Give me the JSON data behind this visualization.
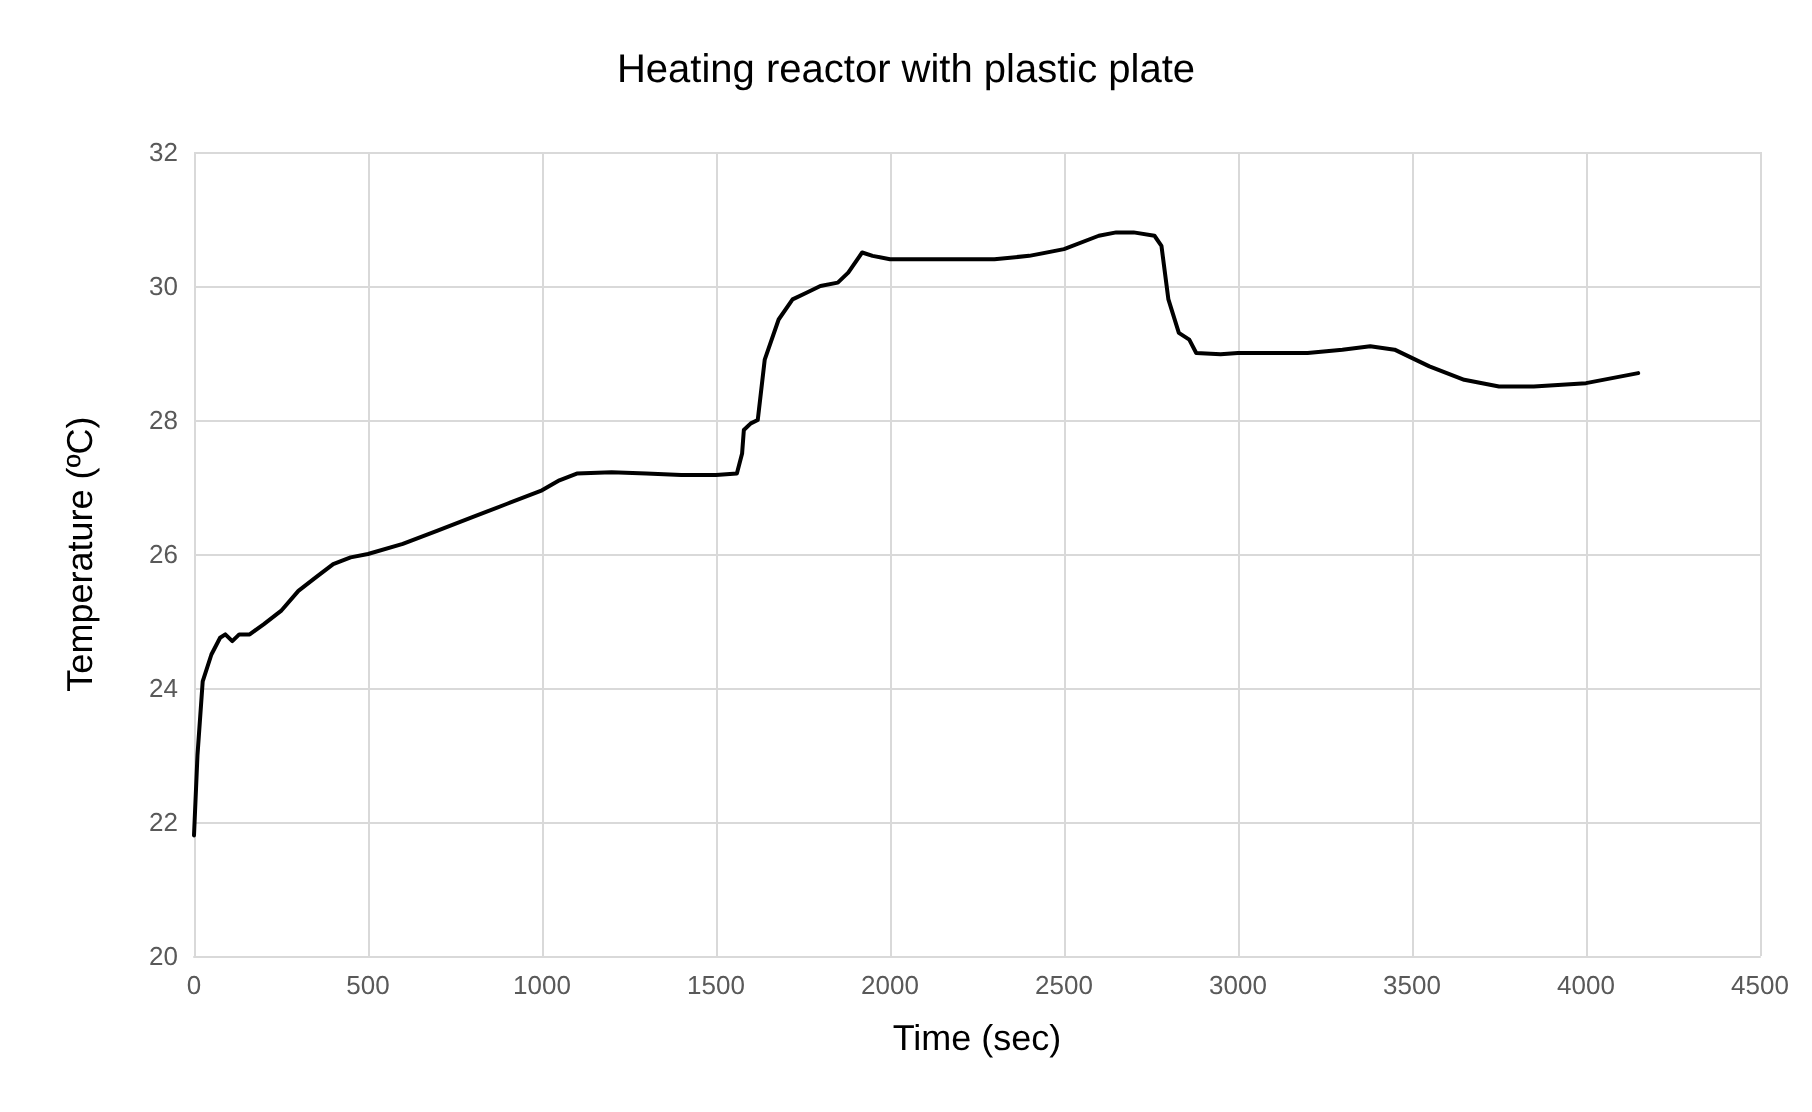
{
  "chart_data": {
    "type": "line",
    "title": "Heating reactor with plastic plate",
    "xlabel": "Time (sec)",
    "ylabel": "Temperature (ºC)",
    "series": [
      {
        "color": "#000000",
        "x": [
          0,
          10,
          25,
          50,
          75,
          90,
          110,
          130,
          160,
          200,
          250,
          300,
          350,
          400,
          450,
          500,
          600,
          700,
          800,
          900,
          1000,
          1050,
          1100,
          1200,
          1300,
          1400,
          1500,
          1560,
          1575,
          1580,
          1600,
          1620,
          1640,
          1680,
          1720,
          1760,
          1800,
          1850,
          1880,
          1920,
          1950,
          2000,
          2100,
          2200,
          2300,
          2400,
          2500,
          2600,
          2650,
          2700,
          2760,
          2780,
          2800,
          2830,
          2860,
          2880,
          2950,
          3000,
          3100,
          3200,
          3300,
          3380,
          3450,
          3550,
          3650,
          3750,
          3850,
          4000,
          4150
        ],
        "values": [
          21.8,
          23.0,
          24.1,
          24.5,
          24.75,
          24.8,
          24.7,
          24.8,
          24.8,
          24.95,
          25.15,
          25.45,
          25.65,
          25.85,
          25.95,
          26.0,
          26.15,
          26.35,
          26.55,
          26.75,
          26.95,
          27.1,
          27.2,
          27.22,
          27.2,
          27.18,
          27.18,
          27.2,
          27.5,
          27.85,
          27.95,
          28.0,
          28.9,
          29.5,
          29.8,
          29.9,
          30.0,
          30.05,
          30.2,
          30.5,
          30.45,
          30.4,
          30.4,
          30.4,
          30.4,
          30.45,
          30.55,
          30.75,
          30.8,
          30.8,
          30.75,
          30.6,
          29.8,
          29.3,
          29.2,
          29.0,
          28.98,
          29.0,
          29.0,
          29.0,
          29.05,
          29.1,
          29.05,
          28.8,
          28.6,
          28.5,
          28.5,
          28.55,
          28.7
        ]
      }
    ],
    "xlim": [
      0,
      4500
    ],
    "xticks": [
      0,
      500,
      1000,
      1500,
      2000,
      2500,
      3000,
      3500,
      4000,
      4500
    ],
    "ylim": [
      20,
      32
    ],
    "yticks": [
      20,
      22,
      24,
      26,
      28,
      30,
      32
    ],
    "grid": true,
    "marker": "none",
    "line_style": "solid"
  }
}
